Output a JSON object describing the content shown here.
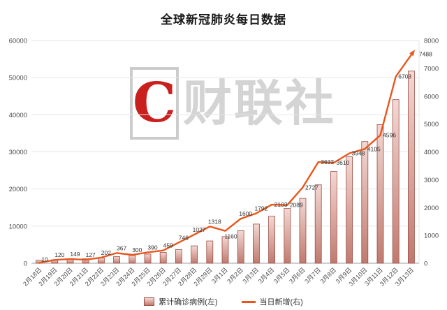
{
  "title": "全球新冠肺炎每日数据",
  "watermark": {
    "logo_letter": "C",
    "text": "财联社"
  },
  "legend": {
    "bar_label": "累计确诊病例(左)",
    "line_label": "当日新增(右)"
  },
  "colors": {
    "line": "#e8571d",
    "bar_border": "#9b4d44",
    "bar_fill_top": "#f3d8d3",
    "bar_fill_bottom": "#c07a6f",
    "grid": "#e6e6e6",
    "axis_line": "#9d9d9d",
    "axis_text": "#4a4a4a",
    "point_label_text": "#333333",
    "title_text": "#1a1a1a",
    "watermark_gray": "#d4d4d4",
    "watermark_red": "#c9201d"
  },
  "chart_data": {
    "type": "bar+line",
    "title": "全球新冠肺炎每日数据",
    "categories": [
      "2月18日",
      "2月19日",
      "2月20日",
      "2月21日",
      "2月22日",
      "2月23日",
      "2月24日",
      "2月25日",
      "2月26日",
      "2月27日",
      "2月28日",
      "2月29日",
      "3月1日",
      "3月2日",
      "3月3日",
      "3月4日",
      "3月5日",
      "3月6日",
      "3月7日",
      "3月8日",
      "3月9日",
      "3月10日",
      "3月11日",
      "3月12日",
      "3月13日"
    ],
    "series": [
      {
        "name": "累计确诊病例(左)",
        "type": "bar",
        "axis": "left",
        "values": [
          804,
          924,
          1073,
          1200,
          1402,
          1769,
          2069,
          2459,
          2918,
          3664,
          4691,
          6009,
          7169,
          8769,
          10561,
          12664,
          14753,
          17480,
          21113,
          24723,
          28671,
          32776,
          37372,
          44067,
          51767
        ],
        "note": "bars carry no data labels in the image; values estimated from pixel heights against the left axis"
      },
      {
        "name": "当日新增(右)",
        "type": "line",
        "axis": "right",
        "values": [
          10,
          120,
          149,
          127,
          202,
          367,
          300,
          390,
          459,
          746,
          1027,
          1318,
          1160,
          1600,
          1792,
          2103,
          2089,
          2727,
          3633,
          3610,
          3948,
          4105,
          4596,
          6703,
          7488
        ],
        "labels_shown": true
      }
    ],
    "left_axis": {
      "min": 0,
      "max": 60000,
      "tick_step": 10000,
      "ticks": [
        0,
        10000,
        20000,
        30000,
        40000,
        50000,
        60000
      ]
    },
    "right_axis": {
      "min": 0,
      "max": 8000,
      "tick_step": 1000,
      "ticks": [
        0,
        1000,
        2000,
        3000,
        4000,
        5000,
        6000,
        7000,
        8000
      ]
    },
    "grid": true,
    "x_label_rotation": -45,
    "legend_position": "bottom"
  }
}
